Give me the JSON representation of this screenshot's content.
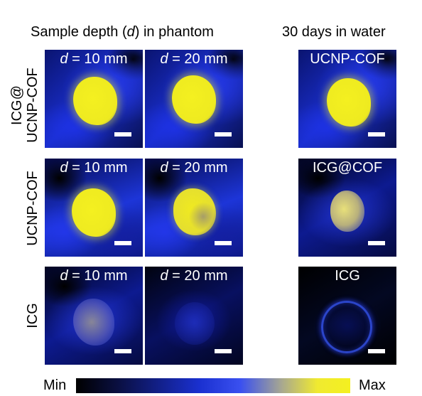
{
  "headers": {
    "depth": "Sample depth (d) in phantom",
    "depth_parts": [
      "Sample depth (",
      "d",
      ") in phantom"
    ],
    "water": "30 days in water"
  },
  "row_labels": {
    "row1_line1": "ICG@",
    "row1_line2": "UCNP-COF",
    "row2": "UCNP-COF",
    "row3": "ICG"
  },
  "depth_labels": {
    "d10": "= 10 mm",
    "d20": "= 20 mm",
    "var": "d"
  },
  "water_labels": {
    "row1": "UCNP-COF",
    "row2": "ICG@COF",
    "row3": "ICG"
  },
  "colorbar": {
    "min_label": "Min",
    "max_label": "Max",
    "colors": [
      "#000000",
      "#1a30d0",
      "#f4f020"
    ]
  }
}
